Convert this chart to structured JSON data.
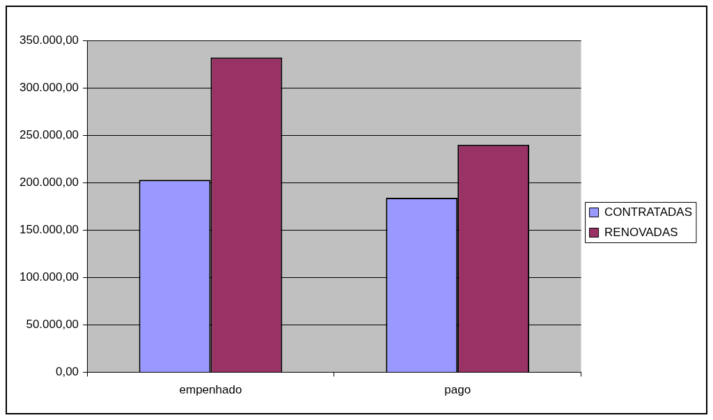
{
  "chart_data": {
    "type": "bar",
    "categories": [
      "empenhado",
      "pago"
    ],
    "series": [
      {
        "name": "CONTRATADAS",
        "color": "#9999ff",
        "values": [
          203000,
          184000
        ]
      },
      {
        "name": "RENOVADAS",
        "color": "#993366",
        "values": [
          332000,
          240000
        ]
      }
    ],
    "ylim": [
      0,
      350000
    ],
    "yticks": [
      {
        "value": 0,
        "label": "0,00"
      },
      {
        "value": 50000,
        "label": "50.000,00"
      },
      {
        "value": 100000,
        "label": "100.000,00"
      },
      {
        "value": 150000,
        "label": "150.000,00"
      },
      {
        "value": 200000,
        "label": "200.000,00"
      },
      {
        "value": 250000,
        "label": "250.000,00"
      },
      {
        "value": 300000,
        "label": "300.000,00"
      },
      {
        "value": 350000,
        "label": "350.000,00"
      }
    ],
    "grid": "y",
    "legend": "right"
  }
}
